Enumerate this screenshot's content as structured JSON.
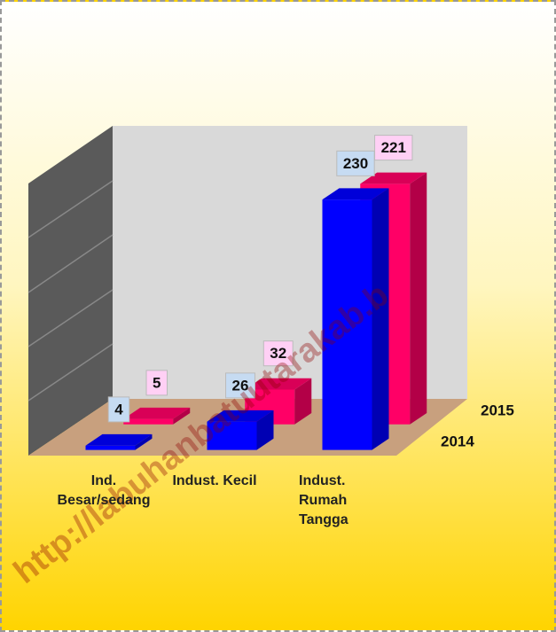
{
  "chart_data": {
    "type": "bar3d",
    "categories": [
      "Ind. Besar/sedang",
      "Indust. Kecil",
      "Indust. Rumah Tangga"
    ],
    "series": [
      {
        "name": "2014",
        "color": "#0000ff",
        "values": [
          4,
          26,
          230
        ]
      },
      {
        "name": "2015",
        "color": "#ff0066",
        "values": [
          5,
          32,
          221
        ]
      }
    ],
    "ylim": [
      0,
      250
    ],
    "watermark": "http://labuhanbatuutarakab.b"
  }
}
